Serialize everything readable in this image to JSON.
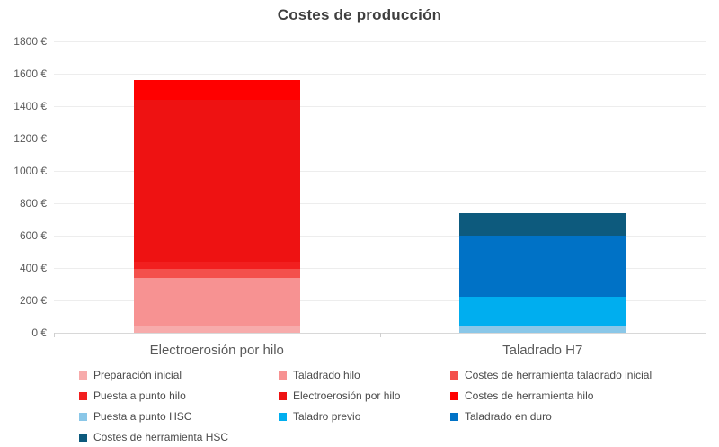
{
  "chart_data": {
    "type": "bar",
    "stacked": true,
    "title": "Costes de producción",
    "categories": [
      "Electroerosión por hilo",
      "Taladrado H7"
    ],
    "series": [
      {
        "name": "Preparación inicial",
        "color": "#f7abab",
        "values": [
          40,
          0
        ]
      },
      {
        "name": "Taladrado hilo",
        "color": "#f79292",
        "values": [
          300,
          0
        ]
      },
      {
        "name": "Costes de herramienta taladrado inicial",
        "color": "#f4504c",
        "values": [
          55,
          0
        ]
      },
      {
        "name": "Puesta a punto hilo",
        "color": "#f21f1f",
        "values": [
          45,
          0
        ]
      },
      {
        "name": "Electroerosión por hilo",
        "color": "#ee1212",
        "values": [
          1000,
          0
        ]
      },
      {
        "name": "Costes de herramienta hilo",
        "color": "#ff0000",
        "values": [
          120,
          0
        ]
      },
      {
        "name": "Puesta a punto HSC",
        "color": "#8ac7e8",
        "values": [
          0,
          45
        ]
      },
      {
        "name": "Taladro previo",
        "color": "#00aeef",
        "values": [
          0,
          180
        ]
      },
      {
        "name": "Taladrado en duro",
        "color": "#0072c6",
        "values": [
          0,
          375
        ]
      },
      {
        "name": "Costes de herramienta HSC",
        "color": "#0d5a7d",
        "values": [
          0,
          140
        ]
      }
    ],
    "totals": [
      1560,
      740
    ],
    "y_ticks": [
      "1800 €",
      "1600 €",
      "1400 €",
      "1200 €",
      "1000 €",
      "800 €",
      "600 €",
      "400 €",
      "200 €",
      "0 €"
    ],
    "ylim": [
      0,
      1800
    ],
    "grid": true,
    "legend_position": "bottom"
  }
}
